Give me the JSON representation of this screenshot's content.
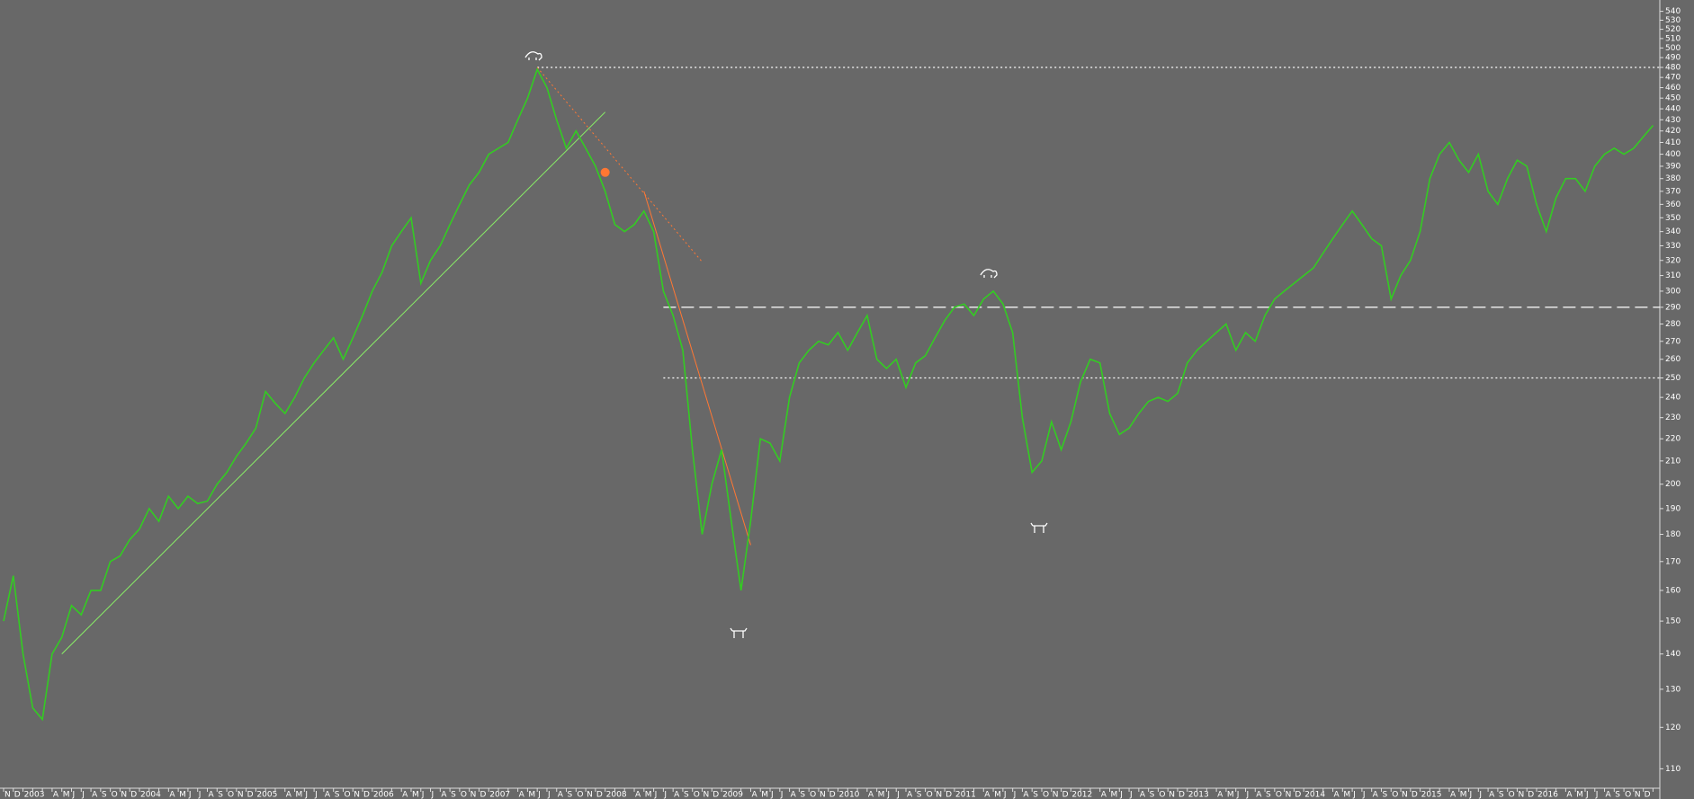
{
  "chart_data": {
    "type": "line",
    "log_scale": true,
    "color": "#33cc22",
    "categories": [
      "N",
      "D",
      "2003",
      null,
      null,
      "A",
      "M",
      "J",
      "J",
      "A",
      "S",
      "O",
      "N",
      "D",
      "2004",
      null,
      null,
      "A",
      "M",
      "J",
      "J",
      "A",
      "S",
      "O",
      "N",
      "D",
      "2005",
      null,
      null,
      "A",
      "M",
      "J",
      "J",
      "A",
      "S",
      "O",
      "N",
      "D",
      "2006",
      null,
      null,
      "A",
      "M",
      "J",
      "J",
      "A",
      "S",
      "O",
      "N",
      "D",
      "2007",
      null,
      null,
      "A",
      "M",
      "J",
      "J",
      "A",
      "S",
      "O",
      "N",
      "D",
      "2008",
      null,
      null,
      "A",
      "M",
      "J",
      "J",
      "A",
      "S",
      "O",
      "N",
      "D",
      "2009",
      null,
      null,
      "A",
      "M",
      "J",
      "J",
      "A",
      "S",
      "O",
      "N",
      "D",
      "2010",
      null,
      null,
      "A",
      "M",
      "J",
      "J",
      "A",
      "S",
      "O",
      "N",
      "D",
      "2011",
      null,
      null,
      "A",
      "M",
      "J",
      "J",
      "A",
      "S",
      "O",
      "N",
      "D",
      "2012",
      null,
      null,
      "A",
      "M",
      "J",
      "J",
      "A",
      "S",
      "O",
      "N",
      "D",
      "2013",
      null,
      null,
      "A",
      "M",
      "J",
      "J",
      "A",
      "S",
      "O",
      "N",
      "D",
      "2014",
      null,
      null,
      "A",
      "M",
      "J",
      "J",
      "A",
      "S",
      "O",
      "N",
      "D",
      "2015",
      null,
      null,
      "A",
      "M",
      "J",
      "J",
      "A",
      "S",
      "O",
      "N",
      "D",
      "2016",
      null,
      null,
      "A",
      "M",
      "J",
      "J",
      "A",
      "S",
      "O",
      "N",
      "D",
      null
    ],
    "values": [
      150,
      165,
      140,
      125,
      122,
      140,
      145,
      155,
      152,
      160,
      160,
      170,
      172,
      178,
      182,
      190,
      185,
      195,
      190,
      195,
      192,
      193,
      200,
      205,
      212,
      218,
      225,
      243,
      237,
      232,
      240,
      250,
      258,
      265,
      272,
      260,
      272,
      285,
      300,
      312,
      330,
      340,
      350,
      305,
      320,
      330,
      345,
      360,
      375,
      385,
      400,
      405,
      410,
      430,
      450,
      478,
      460,
      430,
      405,
      420,
      405,
      390,
      370,
      345,
      340,
      345,
      355,
      340,
      300,
      285,
      265,
      215,
      180,
      200,
      215,
      185,
      160,
      185,
      220,
      218,
      210,
      240,
      258,
      265,
      270,
      268,
      275,
      265,
      275,
      285,
      260,
      255,
      260,
      245,
      258,
      262,
      272,
      282,
      290,
      292,
      285,
      295,
      300,
      292,
      275,
      230,
      205,
      210,
      228,
      215,
      228,
      248,
      260,
      258,
      232,
      222,
      225,
      232,
      238,
      240,
      238,
      242,
      258,
      265,
      270,
      275,
      280,
      265,
      275,
      270,
      285,
      295,
      300,
      305,
      310,
      315,
      325,
      335,
      345,
      355,
      345,
      335,
      330,
      295,
      310,
      320,
      340,
      380,
      400,
      410,
      395,
      385,
      400,
      370,
      360,
      380,
      395,
      390,
      360,
      340,
      365,
      380,
      380,
      370,
      390,
      400,
      405,
      400,
      405,
      415,
      425
    ],
    "ylim": [
      106,
      553
    ],
    "yticks": [
      110,
      120,
      130,
      140,
      150,
      160,
      170,
      180,
      190,
      200,
      210,
      220,
      230,
      240,
      250,
      260,
      270,
      280,
      290,
      300,
      310,
      320,
      330,
      340,
      350,
      360,
      370,
      380,
      390,
      400,
      410,
      420,
      430,
      440,
      450,
      460,
      470,
      480,
      490,
      500,
      510,
      520,
      530,
      540
    ],
    "reference_lines": [
      {
        "value": 480,
        "start": 55,
        "style": "dotted",
        "color": "#ffffff"
      },
      {
        "value": 290,
        "start": 68,
        "style": "dashed",
        "color": "#ffffff"
      },
      {
        "value": 250,
        "start": 68,
        "style": "dotted",
        "color": "#ffffff"
      }
    ],
    "trendlines": [
      {
        "x": [
          6,
          62
        ],
        "y": [
          140,
          437
        ],
        "color": "#88ee66",
        "style": "solid"
      },
      {
        "x": [
          55,
          72
        ],
        "y": [
          480,
          319
        ],
        "color": "#ff7733",
        "style": "dotted"
      },
      {
        "x": [
          66,
          77
        ],
        "y": [
          370,
          176
        ],
        "color": "#ff7733",
        "style": "solid"
      }
    ],
    "marker": {
      "x": 62,
      "y": 385,
      "color": "#ff7733"
    }
  }
}
